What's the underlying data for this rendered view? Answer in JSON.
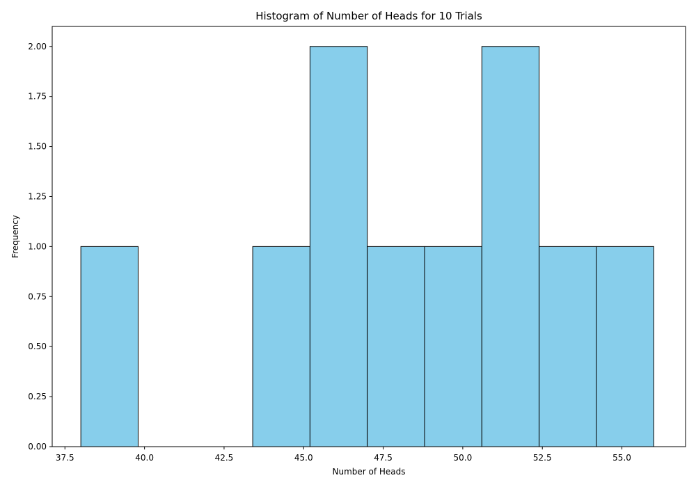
{
  "chart_data": {
    "type": "bar",
    "title": "Histogram of Number of Heads for 10 Trials",
    "xlabel": "Number of Heads",
    "ylabel": "Frequency",
    "xlim": [
      37.1,
      57.0
    ],
    "ylim": [
      0,
      2.1
    ],
    "bin_edges": [
      38.0,
      39.8,
      41.6,
      43.4,
      45.2,
      47.0,
      48.8,
      50.6,
      52.4,
      54.2,
      56.0
    ],
    "counts": [
      1,
      0,
      0,
      1,
      2,
      1,
      1,
      2,
      1,
      1
    ],
    "x_ticks": [
      37.5,
      40.0,
      42.5,
      45.0,
      47.5,
      50.0,
      52.5,
      55.0
    ],
    "x_tick_labels": [
      "37.5",
      "40.0",
      "42.5",
      "45.0",
      "47.5",
      "50.0",
      "52.5",
      "55.0"
    ],
    "y_ticks": [
      0,
      0.25,
      0.5,
      0.75,
      1.0,
      1.25,
      1.5,
      1.75,
      2.0
    ],
    "y_tick_labels": [
      "0.00",
      "0.25",
      "0.50",
      "0.75",
      "1.00",
      "1.25",
      "1.50",
      "1.75",
      "2.00"
    ],
    "grid": false,
    "legend": "none",
    "bar_color": "#87ceeb",
    "edge_color": "#000000"
  }
}
